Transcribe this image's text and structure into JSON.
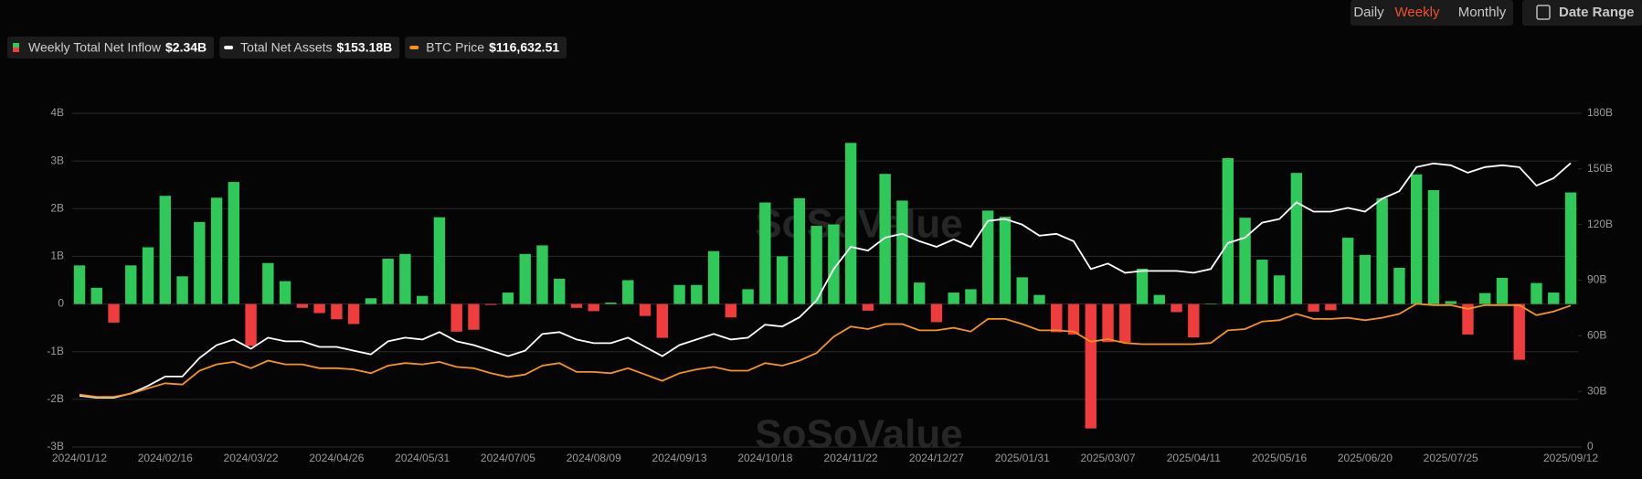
{
  "toolbar": {
    "buttons": [
      "Daily",
      "Weekly",
      "Monthly"
    ],
    "active": 1,
    "date_range": "Date Range"
  },
  "watermark": "SoSoValue",
  "chart_data": {
    "type": "combo",
    "categories": [
      "2024/01/12",
      null,
      null,
      null,
      null,
      "2024/02/16",
      null,
      null,
      null,
      null,
      "2024/03/22",
      null,
      null,
      null,
      null,
      "2024/04/26",
      null,
      null,
      null,
      null,
      "2024/05/31",
      null,
      null,
      null,
      null,
      "2024/07/05",
      null,
      null,
      null,
      null,
      "2024/08/09",
      null,
      null,
      null,
      null,
      "2024/09/13",
      null,
      null,
      null,
      null,
      "2024/10/18",
      null,
      null,
      null,
      null,
      "2024/11/22",
      null,
      null,
      null,
      null,
      "2024/12/27",
      null,
      null,
      null,
      null,
      "2025/01/31",
      null,
      null,
      null,
      null,
      "2025/03/07",
      null,
      null,
      null,
      null,
      "2025/04/11",
      null,
      null,
      null,
      null,
      "2025/05/16",
      null,
      null,
      null,
      null,
      "2025/06/20",
      null,
      null,
      null,
      null,
      "2025/07/25",
      null,
      null,
      null,
      null,
      null,
      null,
      "2025/09/12"
    ],
    "series": [
      {
        "name": "Weekly Total Net Inflow",
        "type": "bar",
        "color": "#2fc95a",
        "negative_color": "#f03c3c",
        "legend_label": "$2.34B",
        "values": [
          0.81,
          0.34,
          -0.39,
          0.81,
          1.19,
          2.27,
          0.58,
          1.72,
          2.23,
          2.56,
          -0.88,
          0.86,
          0.48,
          -0.08,
          -0.19,
          -0.32,
          -0.42,
          0.12,
          0.95,
          1.05,
          0.17,
          1.82,
          -0.58,
          -0.54,
          -0.02,
          0.24,
          1.05,
          1.23,
          0.53,
          -0.08,
          -0.15,
          0.03,
          0.5,
          -0.25,
          -0.71,
          0.4,
          0.4,
          1.11,
          -0.28,
          0.31,
          2.13,
          1.0,
          2.22,
          1.64,
          1.67,
          3.38,
          -0.14,
          2.73,
          2.17,
          0.45,
          -0.38,
          0.24,
          0.31,
          1.96,
          1.83,
          0.56,
          0.19,
          -0.59,
          -0.64,
          -2.61,
          -0.8,
          -0.8,
          0.74,
          0.19,
          -0.17,
          -0.7,
          0.01,
          3.06,
          1.81,
          0.93,
          0.6,
          2.75,
          -0.16,
          -0.13,
          1.39,
          1.03,
          2.22,
          0.76,
          2.72,
          2.39,
          0.06,
          -0.64,
          0.23,
          0.55,
          -1.17,
          0.44,
          0.24,
          2.34
        ]
      },
      {
        "name": "Total Net Assets",
        "type": "line",
        "axis": "y2",
        "color": "#ffffff",
        "legend_label": "$153.18B",
        "values": [
          27.7,
          26.6,
          26.6,
          28.9,
          33,
          38,
          38,
          48,
          55,
          58,
          53,
          59,
          57,
          57,
          54,
          54,
          52,
          50,
          57,
          59,
          58,
          62,
          57,
          55,
          52,
          49,
          52,
          61,
          62,
          58,
          56,
          56,
          59,
          54,
          49,
          55,
          58,
          61,
          58,
          59,
          66,
          65,
          70,
          79,
          96,
          108,
          106,
          113,
          115,
          111,
          108,
          112,
          108,
          122,
          123,
          120,
          114,
          115,
          111,
          96,
          99,
          94,
          95,
          95,
          95,
          94,
          96,
          110,
          113,
          121,
          123,
          132,
          127,
          127,
          129,
          127,
          134,
          138,
          151,
          153,
          152,
          148,
          151,
          152,
          151,
          141,
          145,
          153.18
        ]
      },
      {
        "name": "BTC Price",
        "type": "line",
        "axis": "y3",
        "color": "#f7931a",
        "legend_label": "$116,632.51",
        "values": [
          46000,
          44300,
          44300,
          46800,
          51000,
          55000,
          54000,
          65000,
          70000,
          72000,
          67000,
          73000,
          70000,
          70000,
          67000,
          67000,
          66000,
          63000,
          69000,
          71000,
          70000,
          72000,
          68000,
          67000,
          63000,
          60000,
          62000,
          69000,
          71000,
          64000,
          64000,
          63000,
          67000,
          62000,
          57000,
          63000,
          66000,
          68000,
          65000,
          65000,
          71000,
          69000,
          73000,
          79000,
          92000,
          100000,
          98000,
          102000,
          102000,
          97000,
          97000,
          99000,
          96000,
          106000,
          106000,
          102000,
          97000,
          97000,
          96000,
          88000,
          90000,
          87000,
          86000,
          86000,
          86000,
          86000,
          87000,
          97000,
          98000,
          104000,
          105000,
          110000,
          106000,
          106000,
          107000,
          105000,
          107000,
          110000,
          118000,
          117000,
          117000,
          114000,
          117000,
          117000,
          117000,
          109000,
          112000,
          116632.51
        ]
      }
    ],
    "ylim": [
      -3,
      4
    ],
    "yticks": [
      {
        "value": 4,
        "label": "4B"
      },
      {
        "value": 3,
        "label": "3B"
      },
      {
        "value": 2,
        "label": "2B"
      },
      {
        "value": 1,
        "label": "1B"
      },
      0,
      {
        "value": -1,
        "label": "-1B"
      },
      {
        "value": -2,
        "label": "-2B"
      },
      {
        "value": -3,
        "label": "-3B"
      }
    ],
    "y2lim": [
      0,
      180
    ],
    "y2ticks": [
      {
        "value": 180,
        "label": "180B"
      },
      {
        "value": 150,
        "label": "150B"
      },
      {
        "value": 120,
        "label": "120B"
      },
      {
        "value": 90,
        "label": "90B"
      },
      {
        "value": 60,
        "label": "60B"
      },
      {
        "value": 30,
        "label": "30B"
      },
      0
    ],
    "y3lim": [
      4500,
      269000
    ],
    "grid": true
  }
}
